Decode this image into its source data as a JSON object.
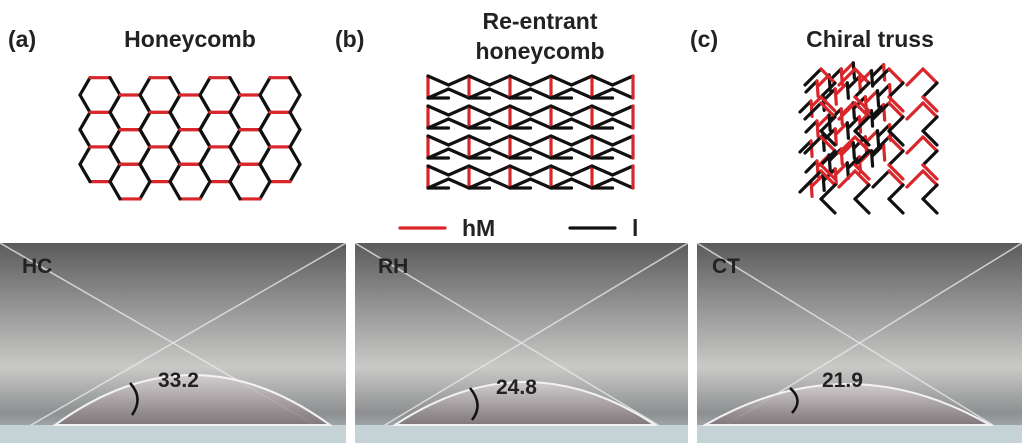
{
  "panels": [
    {
      "letter": "(a)",
      "title": "Honeycomb"
    },
    {
      "letter": "(b)",
      "title": "Re-entrant honeycomb"
    },
    {
      "letter": "(c)",
      "title": "Chiral truss"
    }
  ],
  "legend": [
    {
      "label": "hM"
    },
    {
      "label": "l"
    }
  ],
  "photos": [
    {
      "label": "HC",
      "angle": 33.2
    },
    {
      "label": "RH",
      "angle": 24.8
    },
    {
      "label": "CT",
      "angle": 21.9
    }
  ]
}
